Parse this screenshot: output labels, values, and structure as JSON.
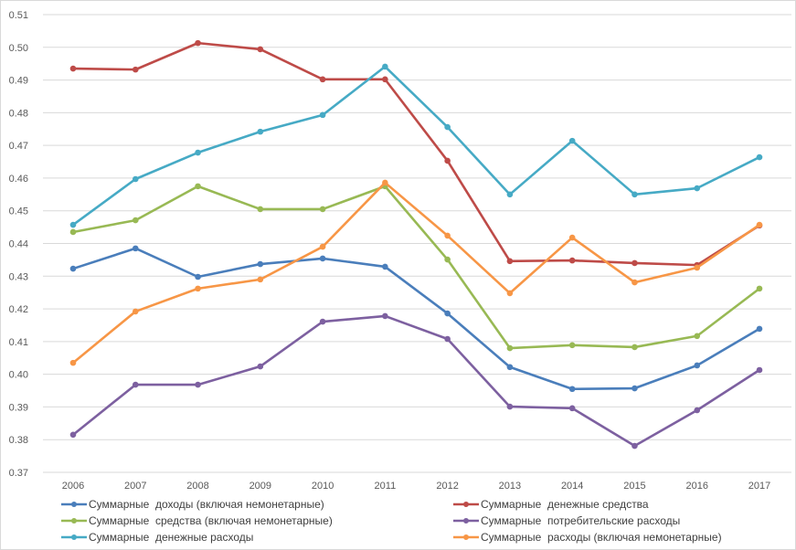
{
  "chart_data": {
    "type": "line",
    "title": "",
    "xlabel": "",
    "ylabel": "",
    "ylim": [
      0.37,
      0.51
    ],
    "ytick_step": 0.01,
    "grid": "horizontal",
    "legend_placement": "bottom",
    "yticks": [
      "0.37",
      "0.38",
      "0.39",
      "0.40",
      "0.41",
      "0.42",
      "0.43",
      "0.44",
      "0.45",
      "0.46",
      "0.47",
      "0.48",
      "0.49",
      "0.50",
      "0.51"
    ],
    "categories": [
      "2006",
      "2007",
      "2008",
      "2009",
      "2010",
      "2011",
      "2012",
      "2013",
      "2014",
      "2015",
      "2016",
      "2017"
    ],
    "series": [
      {
        "name": "Суммарные  доходы (включая немонетарные)",
        "color": "#4a7ebb",
        "values": [
          0.4323,
          0.4385,
          0.4298,
          0.4337,
          0.4354,
          0.4329,
          0.4186,
          0.4022,
          0.3955,
          0.3957,
          0.4027,
          0.4139
        ]
      },
      {
        "name": "Суммарные  денежные средства",
        "color": "#be4b48",
        "values": [
          0.4935,
          0.4932,
          0.5013,
          0.4994,
          0.4902,
          0.4902,
          0.4653,
          0.4346,
          0.4348,
          0.434,
          0.4334,
          0.4455
        ]
      },
      {
        "name": "Суммарные  средства (включая немонетарные)",
        "color": "#98b954",
        "values": [
          0.4435,
          0.4471,
          0.4575,
          0.4505,
          0.4505,
          0.4575,
          0.4351,
          0.408,
          0.4089,
          0.4083,
          0.4117,
          0.4262
        ]
      },
      {
        "name": "Суммарные  потребительские расходы",
        "color": "#7d60a0",
        "values": [
          0.3815,
          0.3968,
          0.3968,
          0.4024,
          0.4161,
          0.4178,
          0.4108,
          0.3901,
          0.3896,
          0.3781,
          0.389,
          0.4013
        ]
      },
      {
        "name": "Суммарные  денежные расходы",
        "color": "#46aac5",
        "values": [
          0.4457,
          0.4597,
          0.4678,
          0.4742,
          0.4793,
          0.4941,
          0.4756,
          0.455,
          0.4714,
          0.455,
          0.4569,
          0.4664
        ]
      },
      {
        "name": "Суммарные  расходы (включая немонетарные)",
        "color": "#f79646",
        "values": [
          0.4035,
          0.4192,
          0.4262,
          0.429,
          0.439,
          0.4586,
          0.4424,
          0.4248,
          0.4418,
          0.4281,
          0.4326,
          0.4457
        ]
      }
    ]
  }
}
